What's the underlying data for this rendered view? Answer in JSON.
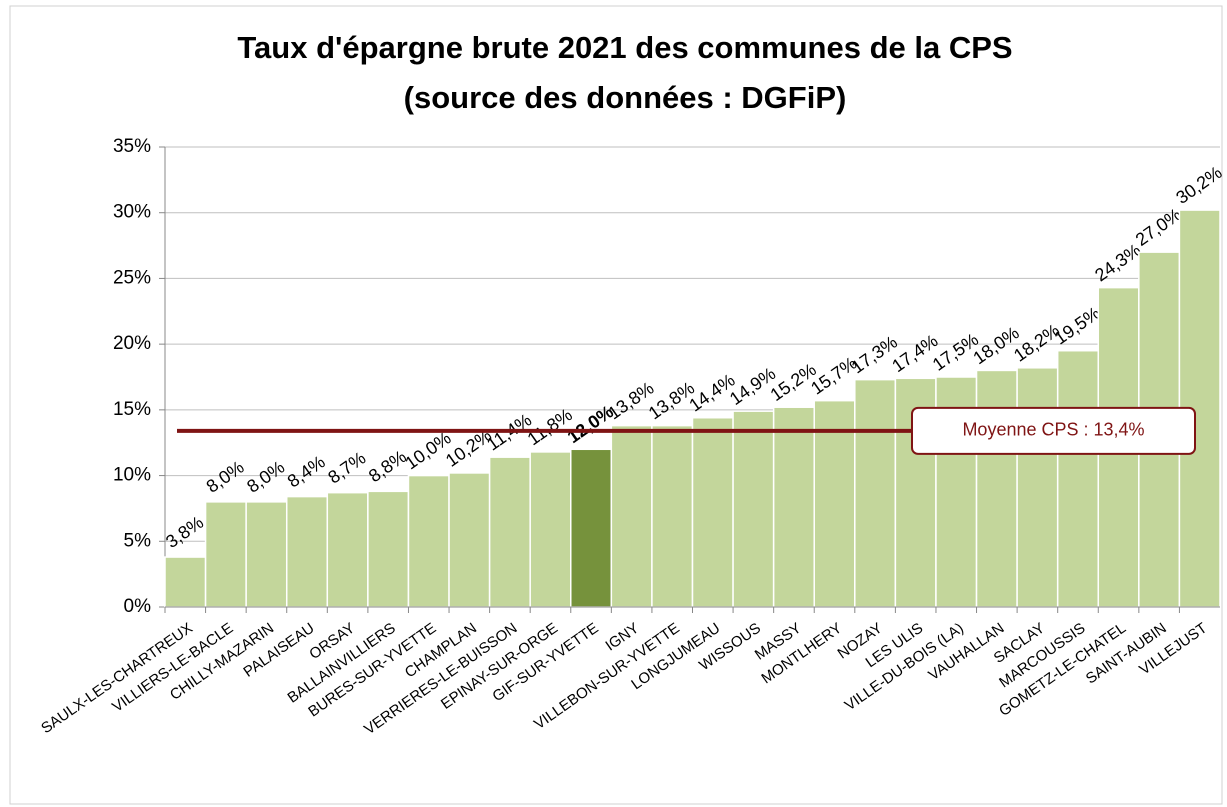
{
  "chart_data": {
    "type": "bar",
    "title": "Taux d'épargne brute 2021 des communes de la CPS",
    "subtitle": "(source des données : DGFiP)",
    "categories": [
      "SAULX-LES-CHARTREUX",
      "VILLIERS-LE-BACLE",
      "CHILLY-MAZARIN",
      "PALAISEAU",
      "ORSAY",
      "BALLAINVILLIERS",
      "BURES-SUR-YVETTE",
      "CHAMPLAN",
      "VERRIERES-LE-BUISSON",
      "EPINAY-SUR-ORGE",
      "GIF-SUR-YVETTE",
      "IGNY",
      "VILLEBON-SUR-YVETTE",
      "LONGJUMEAU",
      "WISSOUS",
      "MASSY",
      "MONTLHERY",
      "NOZAY",
      "LES ULIS",
      "VILLE-DU-BOIS (LA)",
      "VAUHALLAN",
      "SACLAY",
      "MARCOUSSIS",
      "GOMETZ-LE-CHATEL",
      "SAINT-AUBIN",
      "VILLEJUST"
    ],
    "values": [
      3.8,
      8.0,
      8.0,
      8.4,
      8.7,
      8.8,
      10.0,
      10.2,
      11.4,
      11.8,
      12.0,
      13.8,
      13.8,
      14.4,
      14.9,
      15.2,
      15.7,
      17.3,
      17.4,
      17.5,
      18.0,
      18.2,
      19.5,
      24.3,
      27.0,
      30.2
    ],
    "value_labels": [
      "3,8%",
      "8,0%",
      "8,0%",
      "8,4%",
      "8,7%",
      "8,8%",
      "10,0%",
      "10,2%",
      "11,4%",
      "11,8%",
      "12,0%",
      "13,8%",
      "13,8%",
      "14,4%",
      "14,9%",
      "15,2%",
      "15,7%",
      "17,3%",
      "17,4%",
      "17,5%",
      "18,0%",
      "18,2%",
      "19,5%",
      "24,3%",
      "27,0%",
      "30,2%"
    ],
    "colors": [
      "#c3d69b",
      "#c3d69b",
      "#c3d69b",
      "#c3d69b",
      "#c3d69b",
      "#c3d69b",
      "#c3d69b",
      "#c3d69b",
      "#c3d69b",
      "#c3d69b",
      "#76923c",
      "#c3d69b",
      "#c3d69b",
      "#c3d69b",
      "#c3d69b",
      "#c3d69b",
      "#c3d69b",
      "#c3d69b",
      "#c3d69b",
      "#c3d69b",
      "#c3d69b",
      "#c3d69b",
      "#c3d69b",
      "#c3d69b",
      "#c3d69b",
      "#c3d69b"
    ],
    "average": {
      "value": 13.4,
      "label": "Moyenne CPS : 13,4%",
      "color": "#7f1414"
    },
    "ylim": [
      0,
      35
    ],
    "yticks": [
      {
        "value": 0,
        "label": "0%"
      },
      {
        "value": 5,
        "label": "5%"
      },
      {
        "value": 10,
        "label": "10%"
      },
      {
        "value": 15,
        "label": "15%"
      },
      {
        "value": 20,
        "label": "20%"
      },
      {
        "value": 25,
        "label": "25%"
      },
      {
        "value": 30,
        "label": "30%"
      },
      {
        "value": 35,
        "label": "35%"
      }
    ],
    "grid": true
  }
}
